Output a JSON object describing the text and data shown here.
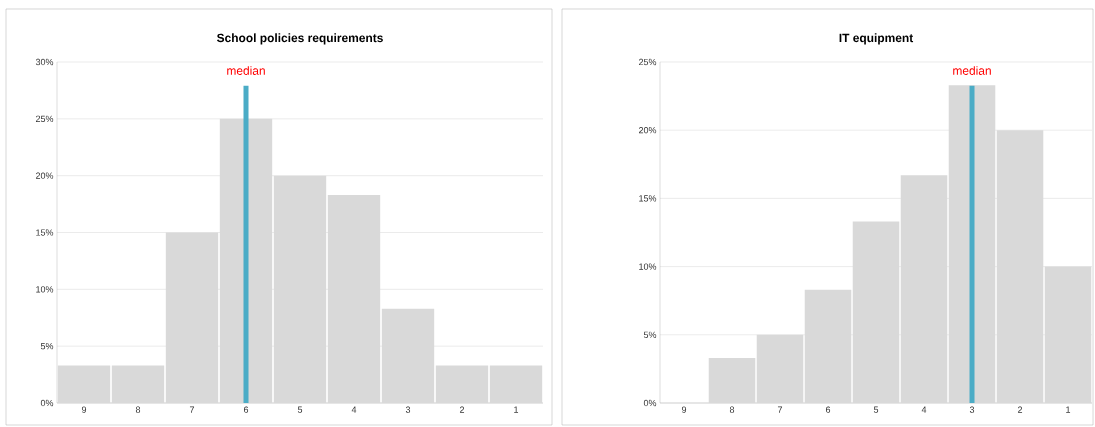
{
  "chart_data": [
    {
      "type": "bar",
      "title": "School policies requirements",
      "categories": [
        "9",
        "8",
        "7",
        "6",
        "5",
        "4",
        "3",
        "2",
        "1"
      ],
      "values": [
        3.3,
        3.3,
        15,
        25,
        20,
        18.3,
        8.3,
        3.3,
        3.3
      ],
      "color": "#d9d9d9",
      "ylim": [
        0,
        30
      ],
      "yticks": [
        {
          "value": 0,
          "label": "0%"
        },
        {
          "value": 5,
          "label": "5%"
        },
        {
          "value": 10,
          "label": "10%"
        },
        {
          "value": 15,
          "label": "15%"
        },
        {
          "value": 20,
          "label": "20%"
        },
        {
          "value": 25,
          "label": "25%"
        },
        {
          "value": 30,
          "label": "30%"
        }
      ],
      "grid": "y",
      "ref_lines": [
        {
          "axis": "x",
          "value": "6",
          "label": "median",
          "color": "#4bacc6"
        }
      ]
    },
    {
      "type": "bar",
      "title": "IT equipment",
      "categories": [
        "9",
        "8",
        "7",
        "6",
        "5",
        "4",
        "3",
        "2",
        "1"
      ],
      "values": [
        0,
        3.3,
        5,
        8.3,
        13.3,
        16.7,
        23.3,
        20,
        10
      ],
      "color": "#d9d9d9",
      "ylim": [
        0,
        25
      ],
      "yticks": [
        {
          "value": 0,
          "label": "0%"
        },
        {
          "value": 5,
          "label": "5%"
        },
        {
          "value": 10,
          "label": "10%"
        },
        {
          "value": 15,
          "label": "15%"
        },
        {
          "value": 20,
          "label": "20%"
        },
        {
          "value": 25,
          "label": "25%"
        }
      ],
      "grid": "y",
      "ref_lines": [
        {
          "axis": "x",
          "value": "3",
          "label": "median",
          "color": "#4bacc6"
        }
      ]
    }
  ]
}
